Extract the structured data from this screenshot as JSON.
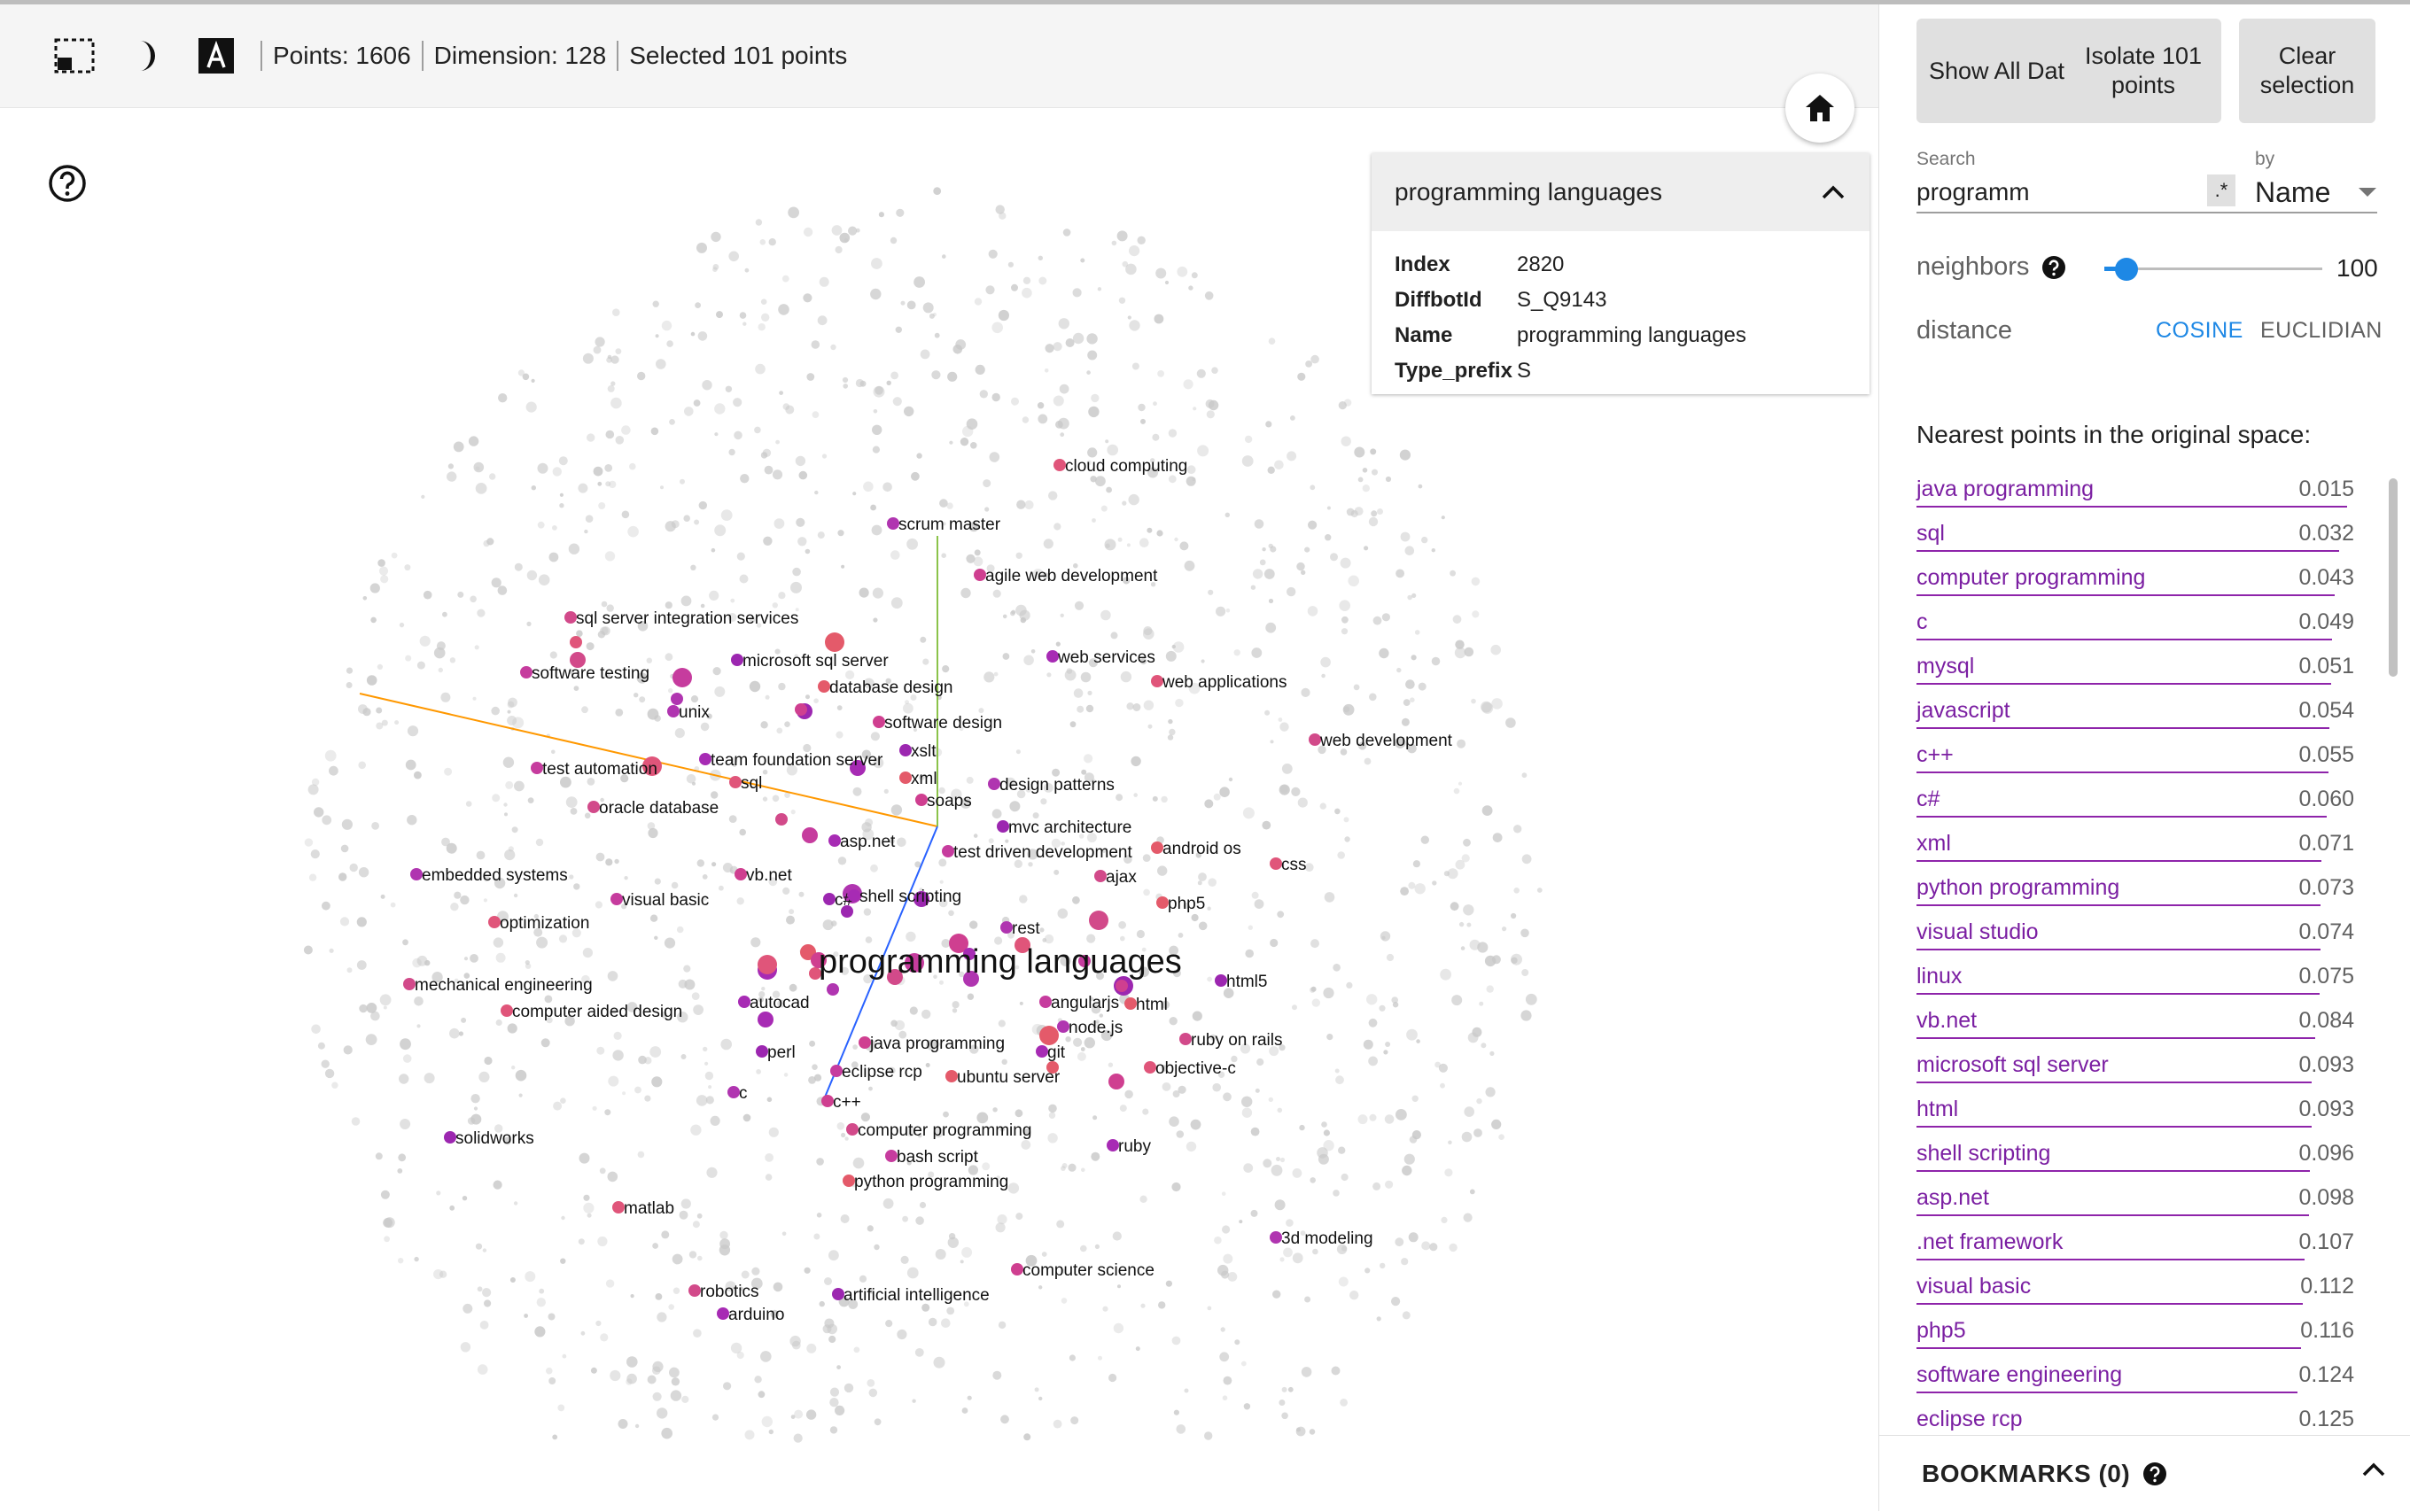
{
  "status": {
    "points": "Points: 1606",
    "dimension": "Dimension: 128",
    "selected": "Selected 101 points"
  },
  "icons": {
    "selection": "selection-box-icon",
    "night_mode": "night-mode-icon",
    "label_toggle": "label-a-icon",
    "help": "help-circle-icon",
    "home": "home-icon",
    "collapse": "chevron-up-icon",
    "neighbors_help": "help-circle-icon",
    "dropdown": "caret-down-icon"
  },
  "card": {
    "title": "programming languages",
    "fields": [
      {
        "key": "Index",
        "value": "2820"
      },
      {
        "key": "DiffbotId",
        "value": "S_Q9143"
      },
      {
        "key": "Name",
        "value": "programming languages"
      },
      {
        "key": "Type_prefix",
        "value": "S"
      }
    ]
  },
  "panel": {
    "show_all": "Show All Data",
    "isolate": "Isolate 101 points",
    "clear": "Clear selection",
    "search_label": "Search",
    "search_value": "programm",
    "regex": ".*",
    "by_label": "by",
    "by_value": "Name",
    "neighbors_label": "neighbors",
    "neighbors_value": "100",
    "neighbors_fraction": 0.1,
    "distance_label": "distance",
    "cosine": "COSINE",
    "euclidean": "EUCLIDIAN",
    "nn_title": "Nearest points in the original space:",
    "bookmarks": "BOOKMARKS (0)"
  },
  "nearest": [
    {
      "name": "java programming",
      "value": "0.015"
    },
    {
      "name": "sql",
      "value": "0.032"
    },
    {
      "name": "computer programming",
      "value": "0.043"
    },
    {
      "name": "c",
      "value": "0.049"
    },
    {
      "name": "mysql",
      "value": "0.051"
    },
    {
      "name": "javascript",
      "value": "0.054"
    },
    {
      "name": "c++",
      "value": "0.055"
    },
    {
      "name": "c#",
      "value": "0.060"
    },
    {
      "name": "xml",
      "value": "0.071"
    },
    {
      "name": "python programming",
      "value": "0.073"
    },
    {
      "name": "visual studio",
      "value": "0.074"
    },
    {
      "name": "linux",
      "value": "0.075"
    },
    {
      "name": "vb.net",
      "value": "0.084"
    },
    {
      "name": "microsoft sql server",
      "value": "0.093"
    },
    {
      "name": "html",
      "value": "0.093"
    },
    {
      "name": "shell scripting",
      "value": "0.096"
    },
    {
      "name": "asp.net",
      "value": "0.098"
    },
    {
      "name": ".net framework",
      "value": "0.107"
    },
    {
      "name": "visual basic",
      "value": "0.112"
    },
    {
      "name": "php5",
      "value": "0.116"
    },
    {
      "name": "software engineering",
      "value": "0.124"
    },
    {
      "name": "eclipse rcp",
      "value": "0.125"
    }
  ],
  "map_labels": [
    "cloud computing",
    "scrum master",
    "agile web development",
    "sql server integration services",
    "microsoft sql server",
    "web services",
    "software testing",
    "database design",
    "web applications",
    "unix",
    "software design",
    "web development",
    "xslt",
    "team foundation server",
    "test automation",
    "xml",
    "sql",
    "design patterns",
    "soaps",
    "oracle database",
    "mvc architecture",
    "asp.net",
    "test driven development",
    "android os",
    "css",
    "embedded systems",
    "vb.net",
    "ajax",
    "c#",
    "shell scripting",
    "visual basic",
    "php5",
    "optimization",
    "rest",
    "programming languages",
    "mechanical engineering",
    "html5",
    "autocad",
    "angularjs",
    "html",
    "computer aided design",
    "node.js",
    "java programming",
    "ruby on rails",
    "perl",
    "git",
    "eclipse rcp",
    "ubuntu server",
    "objective-c",
    "c",
    "c++",
    "computer programming",
    "solidworks",
    "ruby",
    "bash script",
    "python programming",
    "matlab",
    "3d modeling",
    "computer science",
    "robotics",
    "artificial intelligence",
    "arduino"
  ],
  "colors": {
    "accent": "#1e88e5",
    "link": "#7b1fa2",
    "point_gray": "#c8c8c8",
    "axis_orange": "#ff9800",
    "axis_green": "#8bc34a",
    "axis_blue": "#2962ff"
  }
}
